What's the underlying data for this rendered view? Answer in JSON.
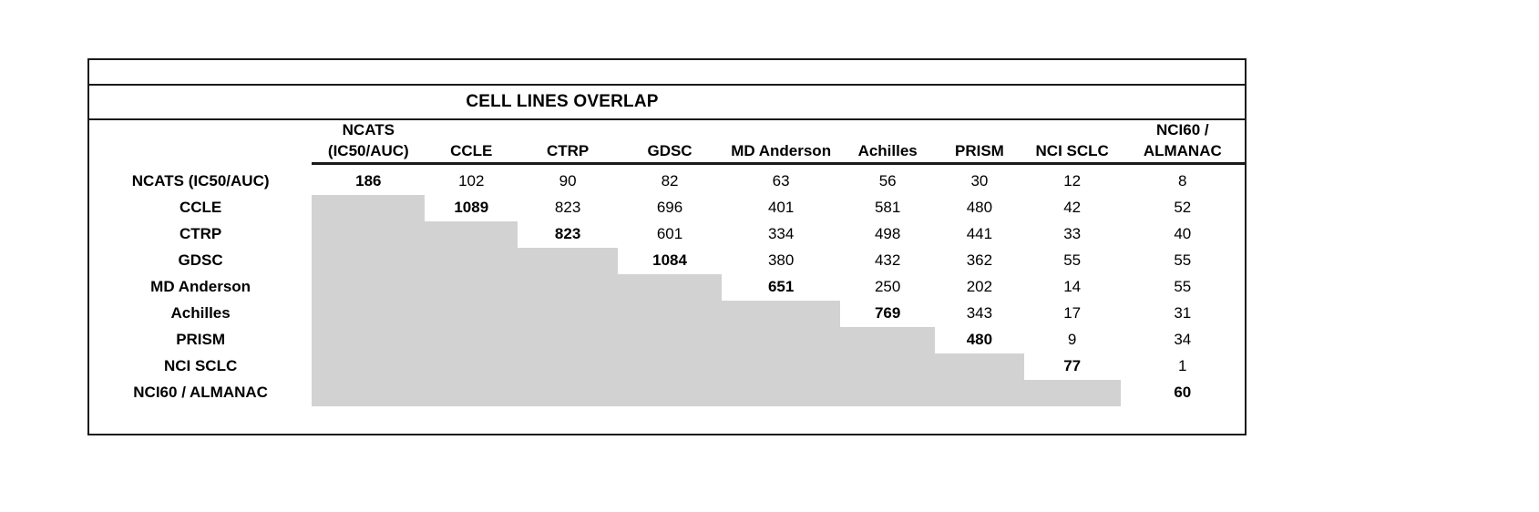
{
  "title": "CELL LINES OVERLAP",
  "colors": {
    "lower_triangle_fill": "#d2d2d2",
    "border": "#1a1a1a",
    "background": "#ffffff"
  },
  "chart_data": {
    "type": "table",
    "title": "CELL LINES OVERLAP",
    "description_note": "pairwise cell-line overlap matrix; diagonal values bold; lower triangle filled gray",
    "row_labels": [
      "NCATS (IC50/AUC)",
      "CCLE",
      "CTRP",
      "GDSC",
      "MD Anderson",
      "Achilles",
      "PRISM",
      "NCI SCLC",
      "NCI60 / ALMANAC"
    ],
    "column_labels": [
      "NCATS (IC50/AUC)",
      "CCLE",
      "CTRP",
      "GDSC",
      "MD Anderson",
      "Achilles",
      "PRISM",
      "NCI SCLC",
      "NCI60 / ALMANAC"
    ],
    "header_lines": [
      [
        "NCATS",
        "(IC50/AUC)"
      ],
      [
        "CCLE"
      ],
      [
        "CTRP"
      ],
      [
        "GDSC"
      ],
      [
        "MD Anderson"
      ],
      [
        "Achilles"
      ],
      [
        "PRISM"
      ],
      [
        "NCI SCLC"
      ],
      [
        "NCI60 /",
        "ALMANAC"
      ]
    ],
    "matrix": [
      [
        186,
        102,
        90,
        82,
        63,
        56,
        30,
        12,
        8
      ],
      [
        null,
        1089,
        823,
        696,
        401,
        581,
        480,
        42,
        52
      ],
      [
        null,
        null,
        823,
        601,
        334,
        498,
        441,
        33,
        40
      ],
      [
        null,
        null,
        null,
        1084,
        380,
        432,
        362,
        55,
        55
      ],
      [
        null,
        null,
        null,
        null,
        651,
        250,
        202,
        14,
        55
      ],
      [
        null,
        null,
        null,
        null,
        null,
        769,
        343,
        17,
        31
      ],
      [
        null,
        null,
        null,
        null,
        null,
        null,
        480,
        9,
        34
      ],
      [
        null,
        null,
        null,
        null,
        null,
        null,
        null,
        77,
        1
      ],
      [
        null,
        null,
        null,
        null,
        null,
        null,
        null,
        null,
        60
      ]
    ],
    "diagonal_bold": true,
    "lower_triangle": "gray-filled"
  }
}
